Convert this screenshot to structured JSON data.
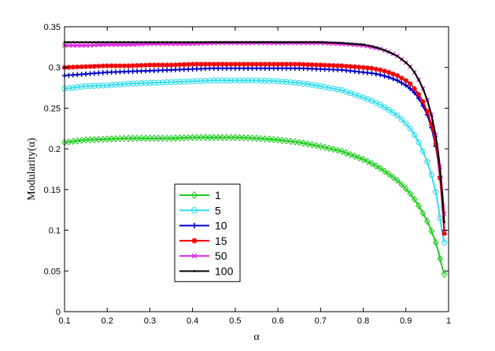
{
  "chart_data": {
    "type": "line",
    "xlabel": "α",
    "ylabel": "Modularity(α)",
    "xlim": [
      0.1,
      1.0
    ],
    "ylim": [
      0,
      0.35
    ],
    "xticks": [
      "0.1",
      "0.2",
      "0.3",
      "0.4",
      "0.5",
      "0.6",
      "0.7",
      "0.8",
      "0.9",
      "1"
    ],
    "yticks": [
      "0",
      "0.05",
      "0.1",
      "0.15",
      "0.2",
      "0.25",
      "0.3",
      "0.35"
    ],
    "grid": false,
    "legend_position": "lower-left",
    "x": [
      0.1,
      0.15,
      0.2,
      0.25,
      0.3,
      0.35,
      0.4,
      0.45,
      0.5,
      0.55,
      0.6,
      0.65,
      0.7,
      0.75,
      0.8,
      0.82,
      0.84,
      0.86,
      0.88,
      0.9,
      0.91,
      0.92,
      0.93,
      0.94,
      0.95,
      0.96,
      0.97,
      0.975,
      0.98,
      0.985,
      0.99
    ],
    "series": [
      {
        "name": "1",
        "color": "#22cc22",
        "marker": "diamond",
        "values": [
          0.208,
          0.211,
          0.212,
          0.213,
          0.213,
          0.213,
          0.214,
          0.214,
          0.214,
          0.213,
          0.211,
          0.208,
          0.203,
          0.197,
          0.187,
          0.182,
          0.176,
          0.169,
          0.161,
          0.151,
          0.145,
          0.138,
          0.13,
          0.121,
          0.111,
          0.099,
          0.085,
          0.076,
          0.065,
          0.055,
          0.046
        ]
      },
      {
        "name": "5",
        "color": "#33ddee",
        "marker": "circle",
        "values": [
          0.274,
          0.277,
          0.278,
          0.28,
          0.281,
          0.282,
          0.283,
          0.284,
          0.284,
          0.284,
          0.283,
          0.281,
          0.277,
          0.272,
          0.263,
          0.259,
          0.254,
          0.248,
          0.241,
          0.231,
          0.225,
          0.217,
          0.208,
          0.197,
          0.184,
          0.168,
          0.147,
          0.132,
          0.115,
          0.098,
          0.085
        ]
      },
      {
        "name": "10",
        "color": "#0000cc",
        "marker": "plus",
        "values": [
          0.29,
          0.292,
          0.294,
          0.295,
          0.296,
          0.297,
          0.298,
          0.299,
          0.299,
          0.299,
          0.299,
          0.299,
          0.298,
          0.297,
          0.294,
          0.293,
          0.291,
          0.288,
          0.284,
          0.278,
          0.274,
          0.269,
          0.262,
          0.253,
          0.242,
          0.226,
          0.203,
          0.187,
          0.166,
          0.137,
          0.1
        ]
      },
      {
        "name": "15",
        "color": "#ee0000",
        "marker": "star",
        "values": [
          0.3,
          0.301,
          0.302,
          0.302,
          0.303,
          0.303,
          0.304,
          0.304,
          0.304,
          0.304,
          0.304,
          0.304,
          0.303,
          0.302,
          0.3,
          0.299,
          0.297,
          0.294,
          0.29,
          0.284,
          0.28,
          0.274,
          0.267,
          0.258,
          0.246,
          0.23,
          0.206,
          0.188,
          0.164,
          0.132,
          0.096
        ]
      },
      {
        "name": "50",
        "color": "#dd22dd",
        "marker": "x",
        "values": [
          0.327,
          0.327,
          0.328,
          0.328,
          0.329,
          0.329,
          0.329,
          0.33,
          0.33,
          0.33,
          0.33,
          0.33,
          0.33,
          0.329,
          0.327,
          0.325,
          0.323,
          0.319,
          0.314,
          0.306,
          0.301,
          0.294,
          0.285,
          0.274,
          0.26,
          0.242,
          0.217,
          0.2,
          0.178,
          0.15,
          0.12
        ]
      },
      {
        "name": "100",
        "color": "#000000",
        "marker": "dot",
        "values": [
          0.331,
          0.331,
          0.331,
          0.331,
          0.331,
          0.331,
          0.331,
          0.331,
          0.331,
          0.331,
          0.331,
          0.331,
          0.331,
          0.33,
          0.328,
          0.326,
          0.323,
          0.319,
          0.314,
          0.306,
          0.301,
          0.294,
          0.285,
          0.274,
          0.26,
          0.241,
          0.215,
          0.197,
          0.174,
          0.145,
          0.11
        ]
      }
    ]
  }
}
